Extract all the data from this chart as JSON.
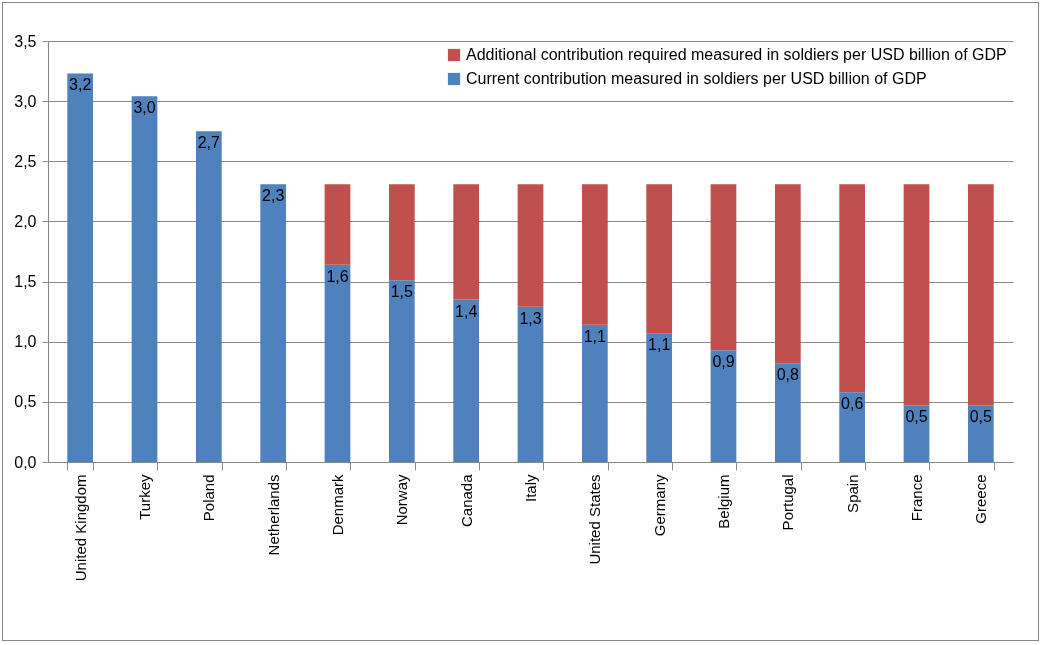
{
  "chart_data": {
    "type": "bar",
    "stacked": true,
    "categories": [
      "United Kingdom",
      "Turkey",
      "Poland",
      "Netherlands",
      "Denmark",
      "Norway",
      "Canada",
      "Italy",
      "United States",
      "Germany",
      "Belgium",
      "Portugal",
      "Spain",
      "France",
      "Greece"
    ],
    "series": [
      {
        "name": "Current contribution measured in soldiers per USD billion of GDP",
        "color": "#4f81bd",
        "values": [
          3.23,
          3.04,
          2.75,
          2.31,
          1.64,
          1.51,
          1.35,
          1.29,
          1.14,
          1.07,
          0.93,
          0.82,
          0.58,
          0.47,
          0.47
        ],
        "value_labels": [
          "3,2",
          "3,0",
          "2,7",
          "2,3",
          "1,6",
          "1,5",
          "1,4",
          "1,3",
          "1,1",
          "1,1",
          "0,9",
          "0,8",
          "0,6",
          "0,5",
          "0,5"
        ]
      },
      {
        "name": "Additional contribution required measured in soldiers per USD billion of GDP",
        "color": "#c0504d",
        "values": [
          null,
          null,
          null,
          null,
          0.67,
          0.8,
          0.96,
          1.02,
          1.17,
          1.24,
          1.38,
          1.49,
          1.73,
          1.84,
          1.84
        ]
      }
    ],
    "ylim": [
      0,
      3.5
    ],
    "yticks": [
      {
        "value": 0,
        "label": "0,0"
      },
      {
        "value": 0.5,
        "label": "0,5"
      },
      {
        "value": 1,
        "label": "1,0"
      },
      {
        "value": 1.5,
        "label": "1,5"
      },
      {
        "value": 2,
        "label": "2,0"
      },
      {
        "value": 2.5,
        "label": "2,5"
      },
      {
        "value": 3,
        "label": "3,0"
      },
      {
        "value": 3.5,
        "label": "3,5"
      }
    ],
    "grid": "y",
    "legend": "top right"
  }
}
